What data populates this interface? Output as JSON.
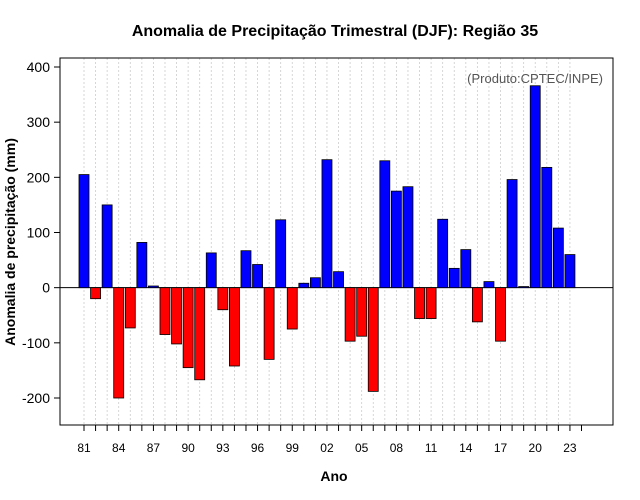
{
  "chart_data": {
    "type": "bar",
    "title": "Anomalia de Precipitação Trimestral (DJF): Região 35",
    "xlabel": "Ano",
    "ylabel": "Anomalia de precipitação (mm)",
    "credit": "(Produto:CPTEC/INPE)",
    "ylim": [
      -250,
      420
    ],
    "yticks": [
      -200,
      -100,
      0,
      100,
      200,
      300,
      400
    ],
    "xtick_labels": [
      "81",
      "84",
      "87",
      "90",
      "93",
      "96",
      "99",
      "02",
      "05",
      "08",
      "11",
      "14",
      "17",
      "20",
      "23"
    ],
    "xtick_every": 3,
    "grid": true,
    "positive_color": "#0000ff",
    "negative_color": "#ff0000",
    "categories": [
      "1981",
      "1982",
      "1983",
      "1984",
      "1985",
      "1986",
      "1987",
      "1988",
      "1989",
      "1990",
      "1991",
      "1992",
      "1993",
      "1994",
      "1995",
      "1996",
      "1997",
      "1998",
      "1999",
      "2000",
      "2001",
      "2002",
      "2003",
      "2004",
      "2005",
      "2006",
      "2007",
      "2008",
      "2009",
      "2010",
      "2011",
      "2012",
      "2013",
      "2014",
      "2015",
      "2016",
      "2017",
      "2018",
      "2019",
      "2020",
      "2021",
      "2022",
      "2023"
    ],
    "values": [
      205,
      -20,
      150,
      -200,
      -73,
      82,
      3,
      -85,
      -102,
      -145,
      -167,
      63,
      -40,
      -142,
      67,
      42,
      -130,
      123,
      -75,
      8,
      18,
      232,
      29,
      -97,
      -88,
      -188,
      230,
      175,
      183,
      -56,
      -56,
      124,
      35,
      69,
      -62,
      11,
      -97,
      196,
      2,
      366,
      218,
      108,
      60
    ]
  }
}
